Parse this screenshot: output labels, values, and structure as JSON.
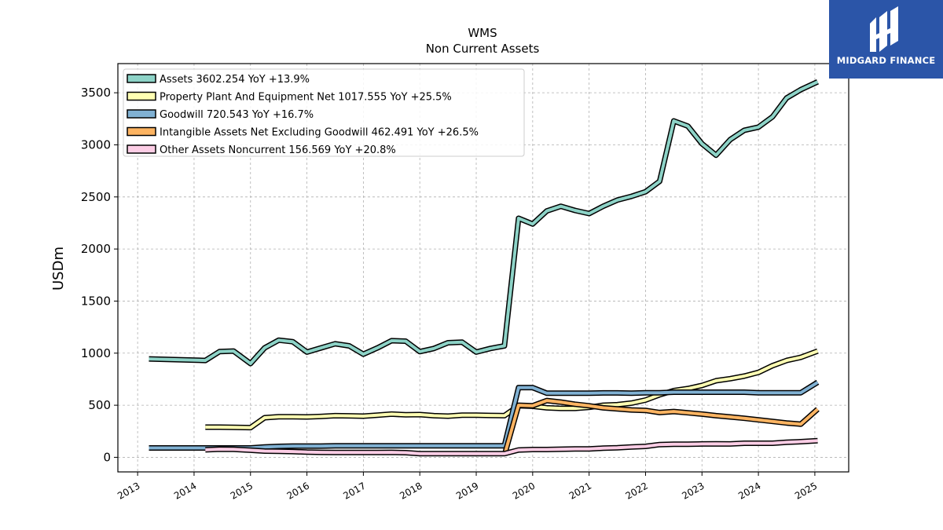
{
  "brand": {
    "name": "MIDGARD FINANCE"
  },
  "chart_data": {
    "type": "line",
    "title": "WMS",
    "subtitle": "Non Current  Assets",
    "xlabel": "",
    "ylabel": "USDm",
    "xlim": [
      2012.65,
      2025.6
    ],
    "ylim": [
      -140,
      3780
    ],
    "x_ticks": [
      "2013",
      "2014",
      "2015",
      "2016",
      "2017",
      "2018",
      "2019",
      "2020",
      "2021",
      "2022",
      "2023",
      "2024",
      "2025"
    ],
    "y_ticks": [
      "0",
      "500",
      "1000",
      "1500",
      "2000",
      "2500",
      "3000",
      "3500"
    ],
    "grid": true,
    "legend": "upper-left",
    "series": [
      {
        "name": "Assets  3602.254 YoY +13.9%",
        "color": "#8dd3c7",
        "x": [
          2013.2,
          2014.2,
          2014.45,
          2014.7,
          2015.0,
          2015.25,
          2015.5,
          2015.75,
          2016.0,
          2016.25,
          2016.5,
          2016.75,
          2017.0,
          2017.25,
          2017.5,
          2017.75,
          2018.0,
          2018.25,
          2018.5,
          2018.75,
          2019.0,
          2019.25,
          2019.5,
          2019.75,
          2020.0,
          2020.25,
          2020.5,
          2020.75,
          2021.0,
          2021.25,
          2021.5,
          2021.75,
          2022.0,
          2022.25,
          2022.5,
          2022.75,
          2023.0,
          2023.25,
          2023.5,
          2023.75,
          2024.0,
          2024.25,
          2024.5,
          2024.75,
          2025.05
        ],
        "y": [
          945,
          930,
          1015,
          1020,
          900,
          1050,
          1125,
          1110,
          1010,
          1050,
          1090,
          1070,
          990,
          1050,
          1120,
          1115,
          1015,
          1045,
          1100,
          1105,
          1010,
          1045,
          1070,
          2295,
          2240,
          2365,
          2410,
          2370,
          2340,
          2410,
          2470,
          2505,
          2550,
          2650,
          3230,
          3180,
          3010,
          2900,
          3050,
          3140,
          3170,
          3270,
          3450,
          3530,
          3605
        ]
      },
      {
        "name": "Property Plant And Equipment Net  1017.555 YoY +25.5%",
        "color": "#ffffb3",
        "x": [
          2014.2,
          2014.45,
          2014.7,
          2015.0,
          2015.25,
          2015.5,
          2015.75,
          2016.0,
          2016.25,
          2016.5,
          2016.75,
          2017.0,
          2017.25,
          2017.5,
          2017.75,
          2018.0,
          2018.25,
          2018.5,
          2018.75,
          2019.0,
          2019.25,
          2019.5,
          2019.75,
          2020.0,
          2020.25,
          2020.5,
          2020.75,
          2021.0,
          2021.25,
          2021.5,
          2021.75,
          2022.0,
          2022.25,
          2022.5,
          2022.75,
          2023.0,
          2023.25,
          2023.5,
          2023.75,
          2024.0,
          2024.25,
          2024.5,
          2024.75,
          2025.05
        ],
        "y": [
          290,
          290,
          288,
          285,
          380,
          390,
          390,
          388,
          392,
          400,
          398,
          395,
          405,
          415,
          408,
          410,
          400,
          395,
          405,
          405,
          402,
          400,
          495,
          490,
          475,
          470,
          470,
          480,
          500,
          505,
          520,
          550,
          600,
          640,
          660,
          690,
          735,
          755,
          780,
          815,
          880,
          930,
          960,
          1020
        ]
      },
      {
        "name": "Goodwill  720.543 YoY +16.7%",
        "color": "#80b1d3",
        "x": [
          2013.2,
          2014.2,
          2014.45,
          2014.7,
          2015.0,
          2015.25,
          2015.5,
          2015.75,
          2016.0,
          2016.25,
          2016.5,
          2016.75,
          2017.0,
          2017.25,
          2017.5,
          2017.75,
          2018.0,
          2018.25,
          2018.5,
          2018.75,
          2019.0,
          2019.25,
          2019.5,
          2019.75,
          2020.0,
          2020.25,
          2020.5,
          2020.75,
          2021.0,
          2021.25,
          2021.5,
          2021.75,
          2022.0,
          2022.25,
          2022.5,
          2022.75,
          2023.0,
          2023.25,
          2023.5,
          2023.75,
          2024.0,
          2024.25,
          2024.5,
          2024.75,
          2025.05
        ],
        "y": [
          90,
          90,
          90,
          90,
          90,
          100,
          105,
          108,
          108,
          108,
          110,
          110,
          110,
          110,
          110,
          110,
          110,
          110,
          110,
          110,
          110,
          110,
          110,
          670,
          670,
          615,
          615,
          615,
          615,
          618,
          618,
          615,
          620,
          620,
          625,
          625,
          625,
          625,
          625,
          625,
          620,
          620,
          620,
          620,
          720
        ]
      },
      {
        "name": "Intangible Assets Net Excluding Goodwill  462.491 YoY +26.5%",
        "color": "#fdb462",
        "x": [
          2019.5,
          2019.75,
          2020.0,
          2020.25,
          2020.5,
          2020.75,
          2021.0,
          2021.25,
          2021.5,
          2021.75,
          2022.0,
          2022.25,
          2022.5,
          2022.75,
          2023.0,
          2023.25,
          2023.5,
          2023.75,
          2024.0,
          2024.25,
          2024.5,
          2024.75,
          2025.05
        ],
        "y": [
          20,
          500,
          495,
          545,
          530,
          510,
          495,
          475,
          465,
          455,
          450,
          430,
          440,
          428,
          415,
          400,
          388,
          375,
          360,
          345,
          330,
          318,
          462
        ]
      },
      {
        "name": "Other Assets Noncurrent  156.569 YoY +20.8%",
        "color": "#fccde5",
        "x": [
          2014.2,
          2014.45,
          2014.7,
          2015.0,
          2015.25,
          2015.5,
          2015.75,
          2016.0,
          2016.25,
          2016.5,
          2016.75,
          2017.0,
          2017.25,
          2017.5,
          2017.75,
          2018.0,
          2018.25,
          2018.5,
          2018.75,
          2019.0,
          2019.25,
          2019.5,
          2019.75,
          2020.0,
          2020.25,
          2020.5,
          2020.75,
          2021.0,
          2021.25,
          2021.5,
          2021.75,
          2022.0,
          2022.25,
          2022.5,
          2022.75,
          2023.0,
          2023.25,
          2023.5,
          2023.75,
          2024.0,
          2024.25,
          2024.5,
          2024.75,
          2025.05
        ],
        "y": [
          72,
          78,
          76,
          68,
          60,
          58,
          55,
          50,
          48,
          46,
          46,
          46,
          46,
          48,
          45,
          35,
          35,
          35,
          35,
          35,
          35,
          35,
          70,
          75,
          75,
          78,
          80,
          80,
          88,
          92,
          100,
          105,
          122,
          125,
          125,
          128,
          130,
          128,
          135,
          135,
          135,
          145,
          150,
          160
        ]
      }
    ]
  }
}
